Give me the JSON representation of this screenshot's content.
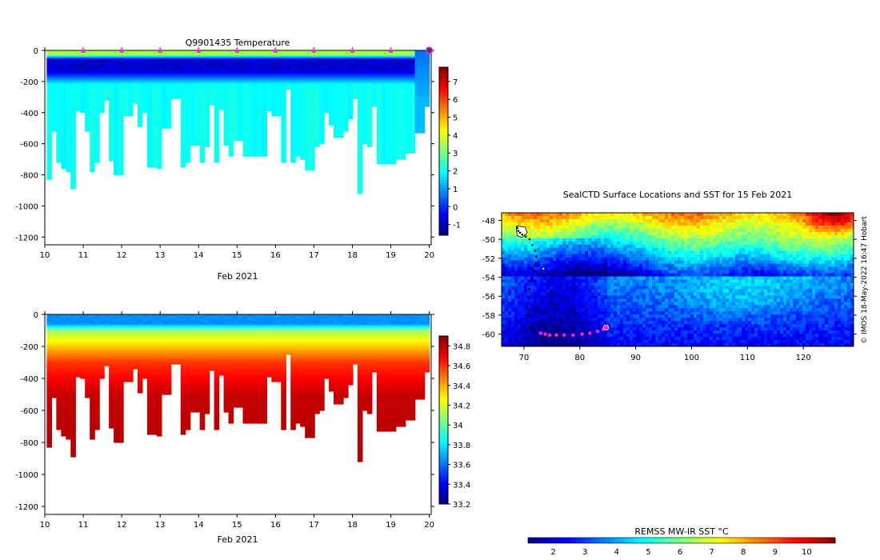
{
  "chart_data": [
    {
      "type": "heatmap",
      "title": "Q9901435  Temperature",
      "xlabel": "Feb 2021",
      "ylabel": "",
      "x_ticks": [
        10,
        11,
        12,
        13,
        14,
        15,
        16,
        17,
        18,
        19,
        20
      ],
      "y_ticks": [
        0,
        -200,
        -400,
        -600,
        -800,
        -1000,
        -1200
      ],
      "xlim": [
        10,
        20.05
      ],
      "ylim": [
        -1250,
        0
      ],
      "colorbar_ticks": [
        -1,
        0,
        1,
        2,
        3,
        4,
        5,
        6,
        7
      ],
      "colorbar_range": [
        -1.6,
        7.8
      ],
      "profile_markers_x": [
        11,
        12,
        13,
        14,
        15,
        16,
        17,
        18,
        19,
        20
      ],
      "profile_max_depth_m": [
        830,
        520,
        720,
        760,
        780,
        890,
        390,
        400,
        520,
        780,
        720,
        400,
        320,
        710,
        800,
        800,
        420,
        420,
        340,
        490,
        400,
        750,
        750,
        760,
        500,
        500,
        310,
        310,
        750,
        720,
        610,
        610,
        720,
        620,
        350,
        720,
        380,
        610,
        680,
        580,
        580,
        680,
        680,
        680,
        680,
        680,
        390,
        420,
        420,
        720,
        250,
        720,
        680,
        700,
        770,
        770,
        620,
        600,
        400,
        480,
        560,
        560,
        520,
        440,
        310,
        920,
        600,
        620,
        360,
        730,
        730,
        730,
        730,
        700,
        700,
        660,
        660,
        530,
        530,
        360
      ],
      "temperature_layers_degC": {
        "surface_0_25m": 3.6,
        "cold_core_60_130m": -0.9,
        "below_200m": 2.0,
        "final_profile_upper": 0.6
      }
    },
    {
      "type": "heatmap",
      "title": "",
      "xlabel": "Feb 2021",
      "ylabel": "",
      "x_ticks": [
        10,
        11,
        12,
        13,
        14,
        15,
        16,
        17,
        18,
        19,
        20
      ],
      "y_ticks": [
        0,
        -200,
        -400,
        -600,
        -800,
        -1000,
        -1200
      ],
      "xlim": [
        10,
        20.05
      ],
      "ylim": [
        -1250,
        0
      ],
      "colorbar_ticks": [
        33.2,
        33.4,
        33.6,
        33.8,
        34,
        34.2,
        34.4,
        34.6,
        34.8
      ],
      "colorbar_tick_labels": [
        "33.2",
        "33.4",
        "33.6",
        "33.8",
        "34",
        "34.2",
        "34.4",
        "34.6",
        "34.8"
      ],
      "colorbar_range": [
        33.2,
        34.9
      ],
      "profile_max_depth_m": [
        830,
        520,
        720,
        760,
        780,
        890,
        390,
        400,
        520,
        780,
        720,
        400,
        320,
        710,
        800,
        800,
        420,
        420,
        340,
        490,
        400,
        750,
        750,
        760,
        500,
        500,
        310,
        310,
        750,
        720,
        610,
        610,
        720,
        620,
        350,
        720,
        380,
        610,
        680,
        580,
        580,
        680,
        680,
        680,
        680,
        680,
        390,
        420,
        420,
        720,
        250,
        720,
        680,
        700,
        770,
        770,
        620,
        600,
        400,
        480,
        560,
        560,
        520,
        440,
        310,
        920,
        600,
        620,
        360,
        730,
        730,
        730,
        730,
        700,
        700,
        660,
        660,
        530,
        530,
        360
      ],
      "salinity_layers_psu": {
        "surface_0_60m": 33.65,
        "halocline_top_100m": 34.1,
        "halocline_bottom_300m": 34.6,
        "deep_below_500m": 34.78
      }
    },
    {
      "type": "map",
      "title": "SealCTD Surface Locations and SST for 15 Feb 2021",
      "x_ticks": [
        70,
        80,
        90,
        100,
        110,
        120
      ],
      "y_ticks": [
        -48,
        -50,
        -52,
        -54,
        -56,
        -58,
        -60
      ],
      "xlim": [
        66,
        129
      ],
      "ylim": [
        -61.3,
        -47.2
      ],
      "colorbar_label": "REMSS MW-IR SST °C",
      "colorbar_ticks": [
        2,
        3,
        4,
        5,
        6,
        7,
        8,
        9,
        10
      ],
      "colorbar_range": [
        1.2,
        10.9
      ],
      "track_points": [
        [
          68.8,
          -48.8
        ],
        [
          69.0,
          -49.1
        ],
        [
          69.3,
          -49.3
        ],
        [
          69.7,
          -49.5
        ],
        [
          70.3,
          -49.7
        ],
        [
          71.0,
          -50.0
        ],
        [
          71.5,
          -50.6
        ],
        [
          72.0,
          -51.2
        ],
        [
          72.2,
          -51.8
        ],
        [
          72.1,
          -52.5
        ],
        [
          71.8,
          -53.3
        ],
        [
          71.4,
          -54.2
        ],
        [
          71.0,
          -55.2
        ],
        [
          70.8,
          -56.2
        ],
        [
          70.6,
          -57.2
        ],
        [
          70.6,
          -58.0
        ],
        [
          70.8,
          -58.7
        ],
        [
          71.2,
          -59.3
        ],
        [
          71.8,
          -59.7
        ]
      ],
      "surface_locations": [
        [
          73.0,
          -59.9
        ],
        [
          73.8,
          -60.0
        ],
        [
          74.6,
          -60.1
        ],
        [
          75.8,
          -60.1
        ],
        [
          77.2,
          -60.1
        ],
        [
          78.8,
          -60.1
        ],
        [
          80.4,
          -60.0
        ],
        [
          81.8,
          -59.9
        ],
        [
          83.2,
          -59.7
        ],
        [
          84.2,
          -59.5
        ]
      ],
      "latest_location": [
        84.7,
        -59.3
      ]
    }
  ],
  "credit": "© IMOS 18-May-2022 16:47 Hobart",
  "colors": {
    "marker": "#ff22ff",
    "last_marker_fill": "#444444",
    "track": "#000000",
    "surface_dot": "#ff22cc"
  }
}
